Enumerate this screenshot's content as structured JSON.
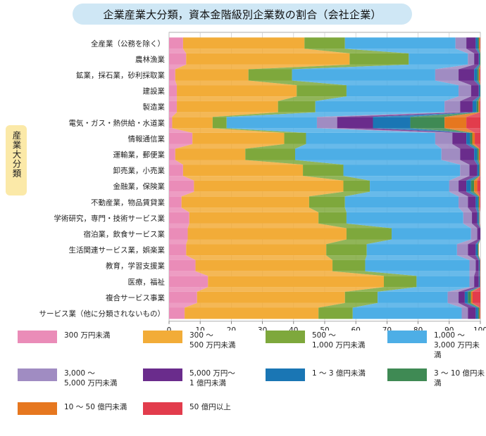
{
  "title": "企業産業大分類，資本金階級別企業数の割合（会社企業）",
  "y_axis_title": "産業大分類",
  "chart_data": {
    "type": "bar",
    "orientation": "horizontal",
    "stacked": true,
    "x_unit": "(%)",
    "xlim": [
      0,
      100
    ],
    "x_ticks": [
      "0",
      "10",
      "20",
      "30",
      "40",
      "50",
      "60",
      "70",
      "80",
      "90",
      "100"
    ],
    "grid": true,
    "categories": [
      "全産業（公務を除く）",
      "農林漁業",
      "鉱業，採石業，砂利採取業",
      "建設業",
      "製造業",
      "電気・ガス・熱供給・水道業",
      "情報通信業",
      "運輸業，郵便業",
      "卸売業，小売業",
      "金融業，保険業",
      "不動産業，物品賃貸業",
      "学術研究，専門・技術サービス業",
      "宿泊業，飲食サービス業",
      "生活関連サービス業，娯楽業",
      "教育，学習支援業",
      "医療，福祉",
      "複合サービス事業",
      "サービス業（他に分類されないもの）"
    ],
    "series": [
      {
        "name": "300 万円未満",
        "color": "#ea8cb8",
        "values": [
          4.5,
          5.5,
          2.0,
          2.5,
          2.5,
          1.0,
          7.5,
          2.0,
          4.5,
          8.0,
          4.0,
          6.5,
          6.0,
          5.5,
          8.5,
          12.5,
          9.0,
          5.0
        ]
      },
      {
        "name": "300 ～\n500 万円未満",
        "color": "#f2ac38",
        "values": [
          39.0,
          52.5,
          23.5,
          38.5,
          32.5,
          13.0,
          29.5,
          22.5,
          38.5,
          48.0,
          41.0,
          41.5,
          51.0,
          45.0,
          44.0,
          56.5,
          47.5,
          43.0
        ]
      },
      {
        "name": "500 ～\n1,000 万円未満",
        "color": "#7ea83c",
        "values": [
          13.0,
          19.0,
          14.0,
          16.0,
          12.0,
          4.5,
          7.0,
          16.0,
          13.0,
          8.5,
          11.5,
          9.0,
          14.5,
          13.0,
          10.5,
          10.5,
          10.5,
          11.0
        ]
      },
      {
        "name": "1,000 ～\n3,000 万円未満",
        "color": "#4daee6",
        "values": [
          35.5,
          19.0,
          46.0,
          36.0,
          41.5,
          29.0,
          41.5,
          47.0,
          37.5,
          25.5,
          36.5,
          37.5,
          25.5,
          29.0,
          33.5,
          17.0,
          22.5,
          35.0
        ]
      },
      {
        "name": "3,000 ～\n5,000 万円未満",
        "color": "#a08cc2",
        "values": [
          3.5,
          2.0,
          7.5,
          4.0,
          5.0,
          6.5,
          5.5,
          6.0,
          3.0,
          3.0,
          3.0,
          2.8,
          2.0,
          3.5,
          2.0,
          1.5,
          3.5,
          2.0
        ]
      },
      {
        "name": "5,000 万円～\n1 億円未満",
        "color": "#6a2c8c",
        "values": [
          3.0,
          1.5,
          5.0,
          2.5,
          4.0,
          11.5,
          4.5,
          4.5,
          2.5,
          2.5,
          2.5,
          1.7,
          1.0,
          2.5,
          1.0,
          1.5,
          2.0,
          2.5
        ]
      },
      {
        "name": "1 ～ 3 億円未満",
        "color": "#1a76b4",
        "values": [
          0.7,
          0.3,
          1.0,
          0.4,
          1.3,
          12.0,
          1.2,
          1.0,
          0.6,
          1.5,
          0.8,
          0.5,
          0.0,
          0.6,
          0.3,
          0.3,
          1.0,
          0.8
        ]
      },
      {
        "name": "3 ～ 10 億円未満",
        "color": "#3f8a54",
        "values": [
          0.4,
          0.2,
          0.5,
          0.1,
          0.6,
          11.0,
          0.7,
          0.5,
          0.2,
          1.0,
          0.3,
          0.2,
          0.0,
          0.3,
          0.1,
          0.1,
          1.0,
          0.4
        ]
      },
      {
        "name": "10 ～ 50 億円未満",
        "color": "#e6771f",
        "values": [
          0.3,
          0.0,
          0.3,
          0.0,
          0.4,
          7.0,
          0.8,
          0.3,
          0.1,
          1.0,
          0.2,
          0.0,
          0.0,
          0.1,
          0.0,
          0.0,
          0.5,
          0.2
        ]
      },
      {
        "name": "50 億円以上",
        "color": "#e23c4c",
        "values": [
          0.1,
          0.0,
          0.2,
          0.0,
          0.2,
          4.5,
          1.8,
          0.2,
          0.1,
          1.0,
          0.2,
          0.1,
          0.0,
          0.0,
          0.1,
          0.1,
          2.5,
          0.1
        ]
      }
    ]
  }
}
